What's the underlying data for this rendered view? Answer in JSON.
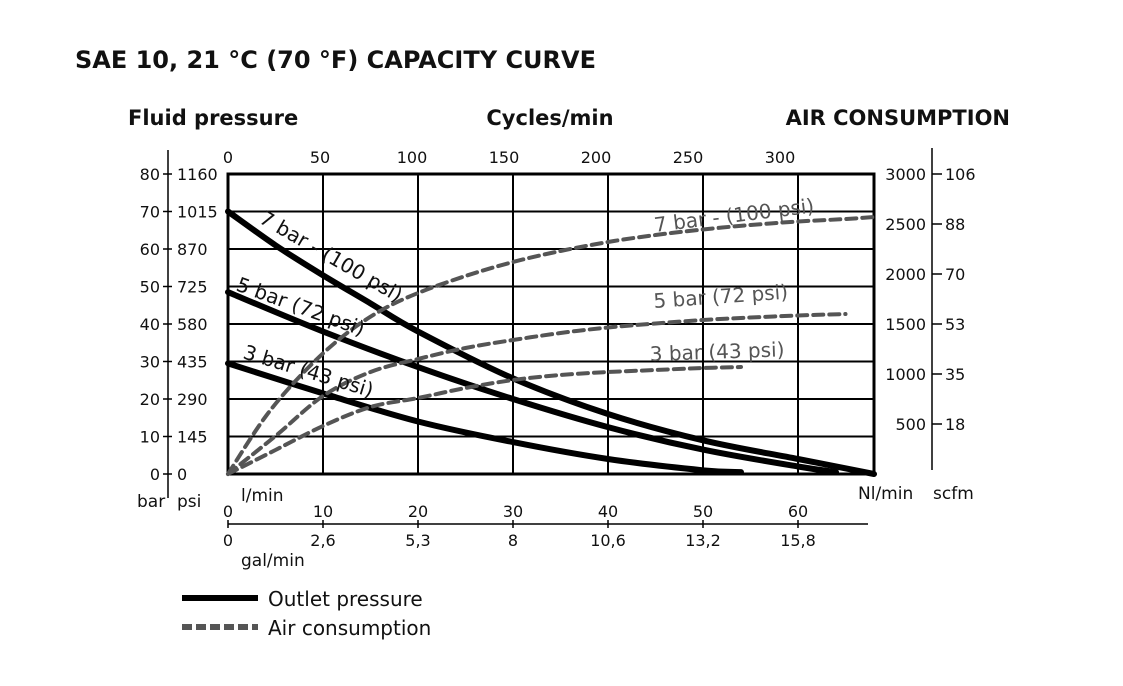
{
  "chart_data": {
    "type": "line",
    "title": "SAE 10, 21 °C (70 °F) CAPACITY CURVE",
    "headers": {
      "left": "Fluid pressure",
      "top": "Cycles/min",
      "right": "AIR CONSUMPTION"
    },
    "x_axis": {
      "label": "l/min",
      "range": [
        0,
        68
      ],
      "ticks": [
        0,
        10,
        20,
        30,
        40,
        50,
        60
      ],
      "secondary_label": "gal/min",
      "secondary_ticks": [
        "0",
        "2,6",
        "5,3",
        "8",
        "10,6",
        "13,2",
        "15,8"
      ]
    },
    "top_axis": {
      "label": "Cycles/min",
      "ticks": [
        0,
        50,
        100,
        150,
        200,
        250,
        300
      ]
    },
    "left_axis": {
      "unit_bar": "bar",
      "unit_psi": "psi",
      "range": [
        0,
        80
      ],
      "bar_ticks": [
        0,
        10,
        20,
        30,
        40,
        50,
        60,
        70,
        80
      ],
      "psi_ticks": [
        0,
        145,
        290,
        435,
        580,
        725,
        870,
        1015,
        1160
      ]
    },
    "right_axis": {
      "unit_nl": "Nl/min",
      "unit_scfm": "scfm",
      "range": [
        0,
        3000
      ],
      "nl_ticks": [
        500,
        1000,
        1500,
        2000,
        2500,
        3000
      ],
      "scfm_ticks": [
        18,
        35,
        53,
        70,
        88,
        106
      ]
    },
    "series": [
      {
        "name": "7 bar - (100 psi)",
        "kind": "outlet",
        "label_rotate": 30,
        "x": [
          0,
          5,
          10,
          15,
          20,
          30,
          40,
          50,
          60,
          70
        ],
        "y": [
          70,
          61,
          53,
          45.5,
          38,
          25.5,
          16,
          9,
          4,
          0
        ]
      },
      {
        "name": "5 bar (72 psi)",
        "kind": "outlet",
        "label_rotate": 20,
        "x": [
          0,
          10,
          20,
          30,
          40,
          50,
          60,
          64
        ],
        "y": [
          48.5,
          38,
          28.5,
          20,
          12.5,
          6.5,
          2,
          0.5
        ]
      },
      {
        "name": "3 bar (43 psi)",
        "kind": "outlet",
        "label_rotate": 17,
        "x": [
          0,
          10,
          20,
          30,
          40,
          50,
          54
        ],
        "y": [
          29.5,
          21.5,
          14,
          8.5,
          4,
          1,
          0.5
        ]
      },
      {
        "name": "7 bar - (100 psi)",
        "kind": "air",
        "x": [
          0,
          4,
          8,
          12,
          16,
          20,
          25,
          30,
          35,
          40,
          45,
          50,
          55,
          60,
          65,
          70
        ],
        "y": [
          0,
          580,
          1020,
          1370,
          1630,
          1810,
          1980,
          2120,
          2230,
          2320,
          2390,
          2445,
          2490,
          2525,
          2550,
          2570
        ]
      },
      {
        "name": "5 bar (72 psi)",
        "kind": "air",
        "x": [
          0,
          5,
          10,
          15,
          20,
          25,
          30,
          35,
          40,
          45,
          50,
          55,
          60,
          65
        ],
        "y": [
          0,
          380,
          780,
          1020,
          1150,
          1260,
          1340,
          1410,
          1465,
          1505,
          1540,
          1565,
          1585,
          1600
        ]
      },
      {
        "name": "3 bar (43 psi)",
        "kind": "air",
        "x": [
          0,
          5,
          10,
          15,
          20,
          25,
          30,
          35,
          40,
          45,
          50,
          54
        ],
        "y": [
          0,
          240,
          480,
          670,
          760,
          860,
          940,
          990,
          1020,
          1040,
          1060,
          1070
        ]
      }
    ],
    "legend": [
      {
        "name": "Outlet pressure",
        "style": "solid"
      },
      {
        "name": "Air consumption",
        "style": "dashed"
      }
    ],
    "grid": true,
    "colors": {
      "outlet": "#000000",
      "air": "#555555"
    }
  }
}
